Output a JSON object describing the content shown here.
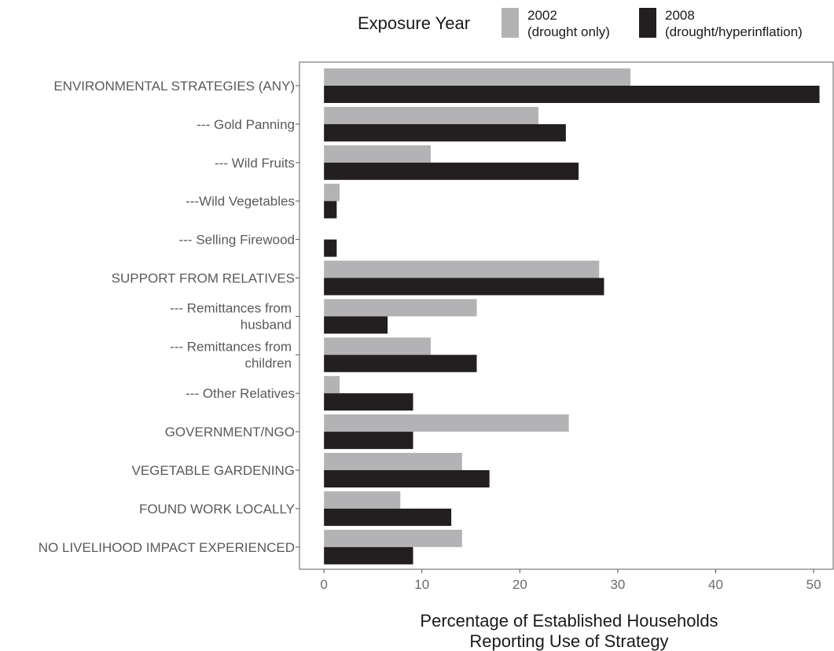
{
  "chart_data": {
    "type": "bar",
    "orientation": "horizontal",
    "xlabel": [
      "Percentage of Established Households",
      "Reporting Use of Strategy"
    ],
    "xlim": [
      -2.5,
      52
    ],
    "xticks": [
      0,
      10,
      20,
      30,
      40,
      50
    ],
    "grid": false,
    "legend": {
      "title": "Exposure Year",
      "position": "top",
      "entries": [
        {
          "lines": [
            "2002",
            "(drought only)"
          ],
          "color": "#b3b3b5"
        },
        {
          "lines": [
            "2008",
            "(drought/hyperinflation)"
          ],
          "color": "#231f20"
        }
      ]
    },
    "categories": [
      [
        "ENVIRONMENTAL STRATEGIES (ANY)"
      ],
      [
        "--- Gold Panning"
      ],
      [
        "--- Wild Fruits"
      ],
      [
        "---Wild Vegetables"
      ],
      [
        "--- Selling Firewood"
      ],
      [
        "SUPPORT FROM RELATIVES"
      ],
      [
        "--- Remittances from",
        "husband"
      ],
      [
        "--- Remittances from",
        "children"
      ],
      [
        "--- Other Relatives"
      ],
      [
        "GOVERNMENT/NGO"
      ],
      [
        "VEGETABLE GARDENING"
      ],
      [
        "FOUND WORK LOCALLY"
      ],
      [
        "NO LIVELIHOOD IMPACT EXPERIENCED"
      ]
    ],
    "series": [
      {
        "name": "2002 (drought only)",
        "color": "#b3b3b5",
        "values": [
          31.3,
          21.9,
          10.9,
          1.6,
          0.0,
          28.1,
          15.6,
          10.9,
          1.6,
          25.0,
          14.1,
          7.8,
          14.1
        ]
      },
      {
        "name": "2008 (drought/hyperinflation)",
        "color": "#231f20",
        "values": [
          50.6,
          24.7,
          26.0,
          1.3,
          1.3,
          28.6,
          6.5,
          15.6,
          9.1,
          9.1,
          16.9,
          13.0,
          9.1
        ]
      }
    ]
  }
}
